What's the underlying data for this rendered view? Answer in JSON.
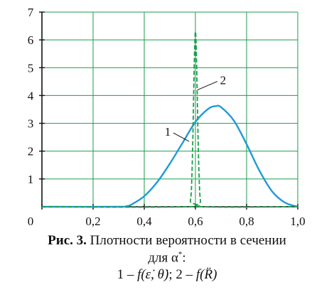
{
  "chart_data": {
    "type": "line",
    "xlim": [
      0,
      1.0
    ],
    "ylim": [
      0,
      7
    ],
    "x_ticks": [
      "0",
      "0,2",
      "0,4",
      "0,6",
      "0,8",
      "1,0"
    ],
    "y_ticks": [
      "1",
      "2",
      "3",
      "4",
      "5",
      "6",
      "7"
    ],
    "grid": true,
    "grid_color": "#1a9e4a",
    "series": [
      {
        "label": "1",
        "color": "#1f9ad6",
        "style": "solid",
        "x": [
          0,
          0.3,
          0.33,
          0.35,
          0.4,
          0.45,
          0.5,
          0.55,
          0.6,
          0.65,
          0.68,
          0.7,
          0.75,
          0.8,
          0.85,
          0.9,
          0.95,
          1.0
        ],
        "y": [
          0,
          0,
          0.02,
          0.08,
          0.38,
          0.88,
          1.55,
          2.3,
          3.05,
          3.52,
          3.62,
          3.58,
          3.1,
          2.25,
          1.3,
          0.55,
          0.15,
          0.0
        ]
      },
      {
        "label": "2",
        "color": "#1a9e4a",
        "style": "dashed",
        "x": [
          0,
          0.57,
          0.58,
          0.585,
          0.59,
          0.595,
          0.6,
          0.605,
          0.61,
          0.615,
          0.62,
          0.63,
          1.0
        ],
        "y": [
          0,
          0,
          0.2,
          0.8,
          2.5,
          5.0,
          6.3,
          5.0,
          2.6,
          0.9,
          0.2,
          0,
          0
        ]
      }
    ],
    "annotations": [
      {
        "text": "1",
        "series": 0
      },
      {
        "text": "2",
        "series": 1
      }
    ]
  },
  "caption": {
    "fig_label": "Рис. 3.",
    "line1_text": " Плотности вероятности в сечении",
    "line2_text": "для α",
    "line2_sup": "*",
    "line2_end": ":",
    "line3": "1 – ",
    "f1": "f(ε̇, θ̇)",
    "sep": ";  2 – ",
    "f2": "f(R̈)"
  }
}
